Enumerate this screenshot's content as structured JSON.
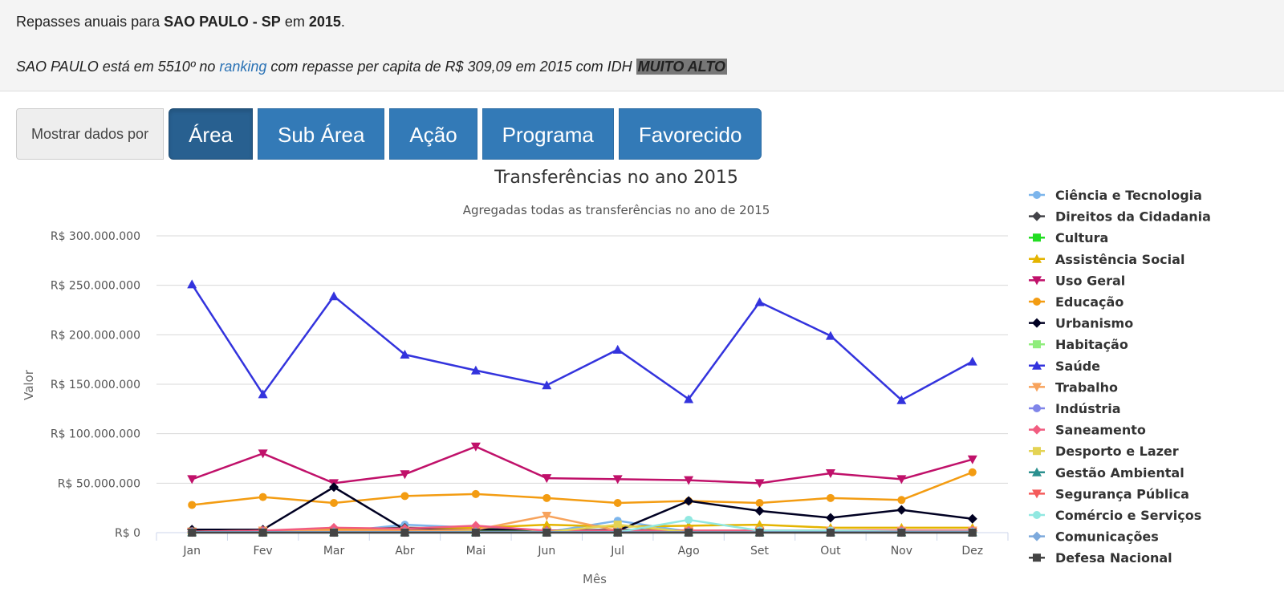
{
  "header": {
    "line1_prefix": "Repasses anuais para ",
    "city_state": "SAO PAULO - SP",
    "line1_mid": " em ",
    "year": "2015",
    "line1_suffix": ".",
    "line2_prefix": "SAO PAULO está em 5510º no ",
    "ranking_link": "ranking",
    "line2_suffix": " com repasse per capita de R$ 309,09 em 2015 com IDH ",
    "idh": "MUITO ALTO"
  },
  "toolbar": {
    "addon_label": "Mostrar dados por",
    "buttons": [
      "Área",
      "Sub Área",
      "Ação",
      "Programa",
      "Favorecido"
    ]
  },
  "chart_data": {
    "type": "line",
    "title": "Transferências no ano 2015",
    "subtitle": "Agregadas todas as transferências no ano de 2015",
    "xlabel": "Mês",
    "ylabel": "Valor",
    "categories": [
      "Jan",
      "Fev",
      "Mar",
      "Abr",
      "Mai",
      "Jun",
      "Jul",
      "Ago",
      "Set",
      "Out",
      "Nov",
      "Dez"
    ],
    "ylim": [
      0,
      300000000
    ],
    "yticks": [
      "R$ 0",
      "R$ 50.000.000",
      "R$ 100.000.000",
      "R$ 150.000.000",
      "R$ 200.000.000",
      "R$ 250.000.000",
      "R$ 300.000.000"
    ],
    "grid": true,
    "legend_position": "right",
    "series": [
      {
        "name": "Ciência e Tecnologia",
        "color": "#7cb5ec",
        "marker": "circle",
        "values": [
          500000,
          500000,
          500000,
          8000000,
          5000000,
          500000,
          12000000,
          1000000,
          500000,
          500000,
          500000,
          500000
        ]
      },
      {
        "name": "Direitos da Cidadania",
        "color": "#434348",
        "marker": "diamond",
        "values": [
          3000000,
          2000000,
          3000000,
          5000000,
          4000000,
          2000000,
          3000000,
          2000000,
          2000000,
          2000000,
          2000000,
          2000000
        ]
      },
      {
        "name": "Cultura",
        "color": "#22dd22",
        "marker": "square",
        "values": [
          1000000,
          1000000,
          1000000,
          2000000,
          1000000,
          1000000,
          1000000,
          1000000,
          1000000,
          1000000,
          1000000,
          1000000
        ]
      },
      {
        "name": "Assistência Social",
        "color": "#e4b400",
        "marker": "triangle",
        "values": [
          3000000,
          2000000,
          3000000,
          4000000,
          5000000,
          8000000,
          6000000,
          7000000,
          8000000,
          5000000,
          5000000,
          5000000
        ]
      },
      {
        "name": "Uso Geral",
        "color": "#c0116a",
        "marker": "triangle-down",
        "values": [
          54000000,
          80000000,
          50000000,
          59000000,
          87000000,
          55000000,
          54000000,
          53000000,
          50000000,
          60000000,
          54000000,
          74000000
        ]
      },
      {
        "name": "Educação",
        "color": "#f39c12",
        "marker": "circle",
        "values": [
          28000000,
          36000000,
          30000000,
          37000000,
          39000000,
          35000000,
          30000000,
          32000000,
          30000000,
          35000000,
          33000000,
          61000000
        ]
      },
      {
        "name": "Urbanismo",
        "color": "#000022",
        "marker": "diamond",
        "values": [
          3000000,
          3000000,
          46000000,
          3000000,
          3000000,
          2000000,
          2000000,
          32000000,
          22000000,
          15000000,
          23000000,
          14000000
        ]
      },
      {
        "name": "Habitação",
        "color": "#90ed7d",
        "marker": "square",
        "values": [
          1000000,
          1000000,
          1000000,
          1000000,
          1000000,
          1000000,
          1000000,
          1000000,
          1000000,
          1000000,
          1000000,
          1000000
        ]
      },
      {
        "name": "Saúde",
        "color": "#3333dd",
        "marker": "triangle",
        "values": [
          251000000,
          140000000,
          239000000,
          180000000,
          164000000,
          149000000,
          185000000,
          135000000,
          233000000,
          199000000,
          134000000,
          173000000
        ]
      },
      {
        "name": "Trabalho",
        "color": "#f7a35c",
        "marker": "triangle-down",
        "values": [
          1000000,
          2000000,
          2000000,
          2000000,
          3000000,
          17000000,
          2000000,
          2000000,
          2000000,
          2000000,
          2000000,
          2000000
        ]
      },
      {
        "name": "Indústria",
        "color": "#8085e9",
        "marker": "circle",
        "values": [
          500000,
          500000,
          500000,
          500000,
          500000,
          500000,
          500000,
          500000,
          500000,
          500000,
          500000,
          500000
        ]
      },
      {
        "name": "Saneamento",
        "color": "#f15c80",
        "marker": "diamond",
        "values": [
          1000000,
          2000000,
          5000000,
          4000000,
          7000000,
          2000000,
          2000000,
          2000000,
          2000000,
          2000000,
          2000000,
          2000000
        ]
      },
      {
        "name": "Desporto e Lazer",
        "color": "#e4d354",
        "marker": "square",
        "values": [
          500000,
          500000,
          500000,
          500000,
          500000,
          500000,
          8000000,
          500000,
          500000,
          500000,
          500000,
          500000
        ]
      },
      {
        "name": "Gestão Ambiental",
        "color": "#2b908f",
        "marker": "triangle",
        "values": [
          500000,
          500000,
          500000,
          500000,
          500000,
          500000,
          500000,
          500000,
          500000,
          500000,
          500000,
          500000
        ]
      },
      {
        "name": "Segurança Pública",
        "color": "#f45b5b",
        "marker": "triangle-down",
        "values": [
          500000,
          500000,
          500000,
          500000,
          500000,
          500000,
          500000,
          500000,
          500000,
          500000,
          500000,
          500000
        ]
      },
      {
        "name": "Comércio e Serviços",
        "color": "#91e8e1",
        "marker": "circle",
        "values": [
          500000,
          500000,
          500000,
          500000,
          500000,
          500000,
          500000,
          13000000,
          2000000,
          2000000,
          1000000,
          1000000
        ]
      },
      {
        "name": "Comunicações",
        "color": "#7ca9dc",
        "marker": "diamond",
        "values": [
          500000,
          500000,
          500000,
          500000,
          500000,
          500000,
          500000,
          500000,
          500000,
          500000,
          500000,
          500000
        ]
      },
      {
        "name": "Defesa Nacional",
        "color": "#444444",
        "marker": "square",
        "values": [
          0,
          0,
          0,
          0,
          0,
          0,
          0,
          0,
          0,
          0,
          0,
          0
        ]
      }
    ]
  }
}
